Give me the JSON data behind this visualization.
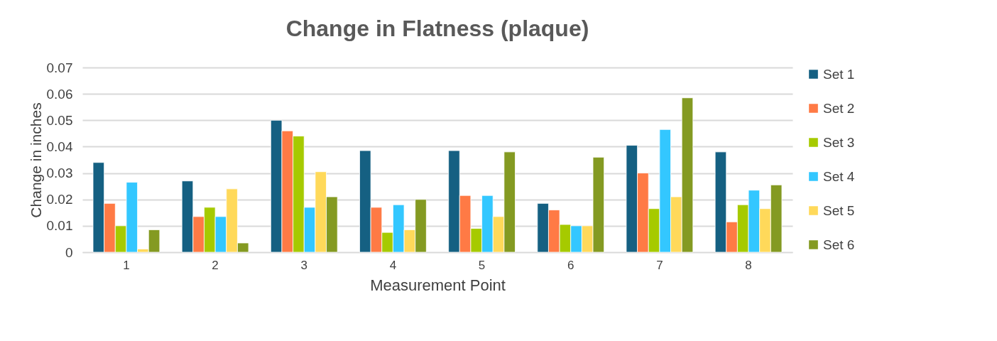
{
  "chart_data": {
    "type": "bar",
    "title": "Change in Flatness (plaque)",
    "xlabel": "Measurement Point",
    "ylabel": "Change in inches",
    "categories": [
      "1",
      "2",
      "3",
      "4",
      "5",
      "6",
      "7",
      "8"
    ],
    "series": [
      {
        "name": "Set 1",
        "color": "#156082",
        "values": [
          0.034,
          0.027,
          0.05,
          0.0385,
          0.0385,
          0.0185,
          0.0405,
          0.038
        ]
      },
      {
        "name": "Set 2",
        "color": "#ff7a45",
        "values": [
          0.0185,
          0.0135,
          0.046,
          0.017,
          0.0215,
          0.016,
          0.03,
          0.0115
        ]
      },
      {
        "name": "Set 3",
        "color": "#a6ca00",
        "values": [
          0.01,
          0.017,
          0.044,
          0.0075,
          0.009,
          0.0105,
          0.0165,
          0.018
        ]
      },
      {
        "name": "Set 4",
        "color": "#33c7ff",
        "values": [
          0.0265,
          0.0135,
          0.017,
          0.018,
          0.0215,
          0.01,
          0.0465,
          0.0235
        ]
      },
      {
        "name": "Set 5",
        "color": "#ffd95a",
        "values": [
          0.0012,
          0.024,
          0.0305,
          0.0085,
          0.0135,
          0.01,
          0.021,
          0.0165
        ]
      },
      {
        "name": "Set 6",
        "color": "#849a22",
        "values": [
          0.0085,
          0.0035,
          0.021,
          0.02,
          0.038,
          0.036,
          0.0585,
          0.0255
        ]
      }
    ],
    "ylim": [
      0,
      0.07
    ],
    "yticks": [
      0,
      0.01,
      0.02,
      0.03,
      0.04,
      0.05,
      0.06,
      0.07
    ],
    "grid": "y",
    "legend": "right"
  }
}
